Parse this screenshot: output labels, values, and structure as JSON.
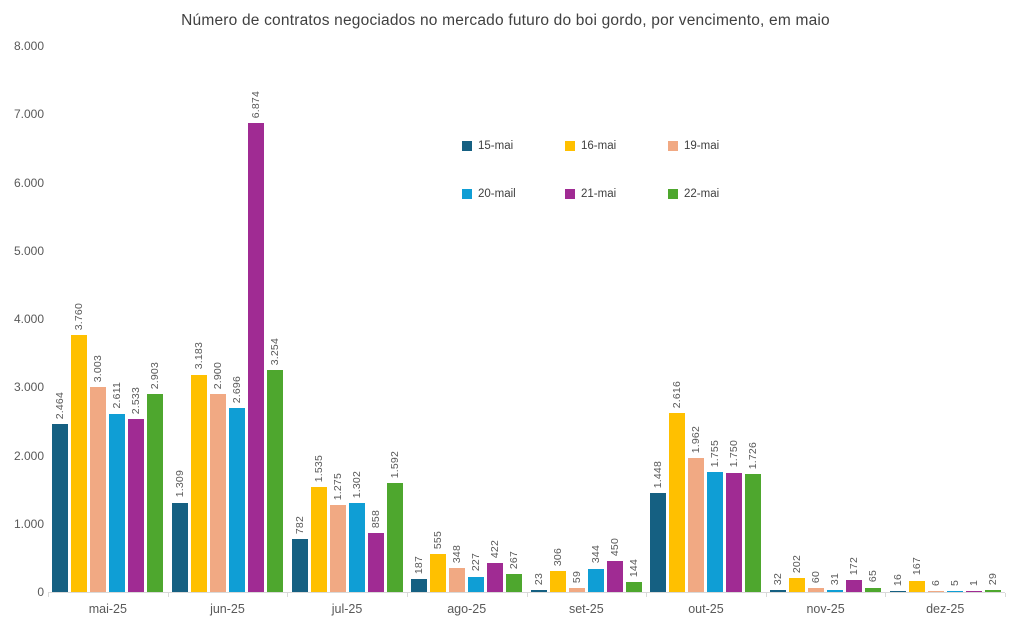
{
  "chart_data": {
    "type": "bar",
    "title": "Número de contratos negociados no mercado futuro do boi gordo, por vencimento, em maio",
    "categories": [
      "mai-25",
      "jun-25",
      "jul-25",
      "ago-25",
      "set-25",
      "out-25",
      "nov-25",
      "dez-25"
    ],
    "series": [
      {
        "name": "15-mai",
        "color": "#156082",
        "values": [
          2464,
          1309,
          782,
          187,
          23,
          1448,
          32,
          16
        ],
        "labels": [
          "2.464",
          "1.309",
          "782",
          "187",
          "23",
          "1.448",
          "32",
          "16"
        ]
      },
      {
        "name": "16-mai",
        "color": "#FFC000",
        "values": [
          3760,
          3183,
          1535,
          555,
          306,
          2616,
          202,
          167
        ],
        "labels": [
          "3.760",
          "3.183",
          "1.535",
          "555",
          "306",
          "2.616",
          "202",
          "167"
        ]
      },
      {
        "name": "19-mai",
        "color": "#F1A983",
        "values": [
          3003,
          2900,
          1275,
          348,
          59,
          1962,
          60,
          6
        ],
        "labels": [
          "3.003",
          "2.900",
          "1.275",
          "348",
          "59",
          "1.962",
          "60",
          "6"
        ]
      },
      {
        "name": "20-mail",
        "color": "#0F9ED5",
        "values": [
          2611,
          2696,
          1302,
          227,
          344,
          1755,
          31,
          5
        ],
        "labels": [
          "2.611",
          "2.696",
          "1.302",
          "227",
          "344",
          "1.755",
          "31",
          "5"
        ]
      },
      {
        "name": "21-mai",
        "color": "#A02B93",
        "values": [
          2533,
          6874,
          858,
          422,
          450,
          1750,
          172,
          1
        ],
        "labels": [
          "2.533",
          "6.874",
          "858",
          "422",
          "450",
          "1.750",
          "172",
          "1"
        ]
      },
      {
        "name": "22-mai",
        "color": "#4EA72E",
        "values": [
          2903,
          3254,
          1592,
          267,
          144,
          1726,
          65,
          29
        ],
        "labels": [
          "2.903",
          "3.254",
          "1.592",
          "267",
          "144",
          "1.726",
          "65",
          "29"
        ]
      }
    ],
    "ylim": [
      0,
      8000
    ],
    "ytick_labels": [
      "8.000",
      "7.000",
      "6.000",
      "5.000",
      "4.000",
      "3.000",
      "2.000",
      "1.000",
      "0"
    ],
    "xlabel": "",
    "ylabel": "",
    "grid": false,
    "legend_position": "upper-center-two-rows",
    "axis_color": "#D9D9D9",
    "label_color": "#595959",
    "title_color": "#404040"
  }
}
